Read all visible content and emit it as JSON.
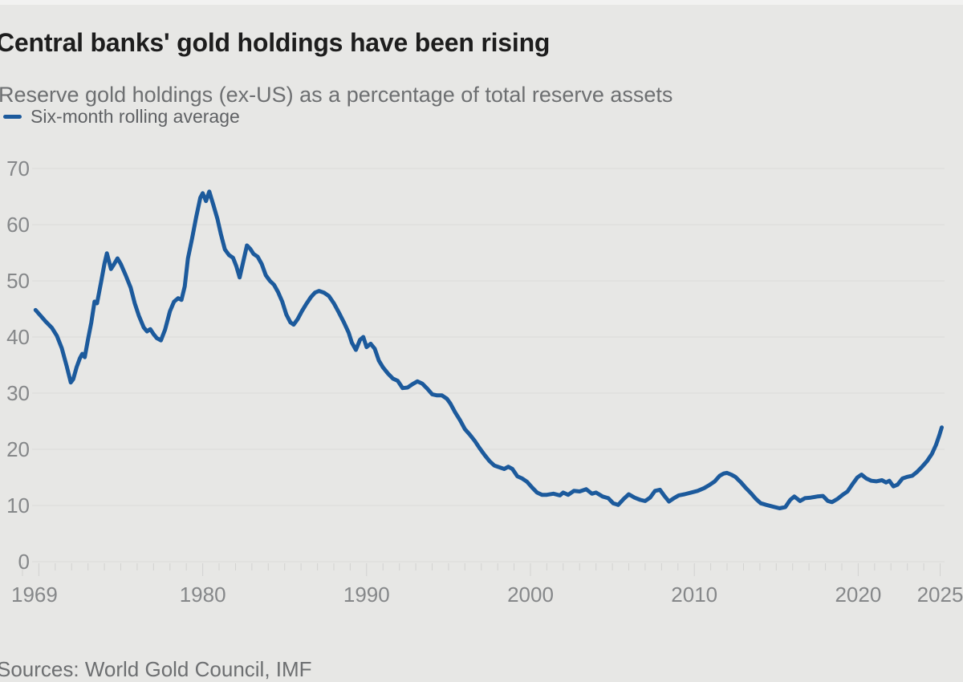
{
  "header": {
    "title": "Central banks' gold holdings have been rising",
    "subtitle": "Reserve gold holdings (ex-US) as a percentage of total reserve assets"
  },
  "legend": {
    "label": "Six-month rolling average"
  },
  "source": "Sources: World Gold Council, IMF",
  "colors": {
    "background": "#e7e7e5",
    "line": "#1c5a9c",
    "title_text": "#1d1d1d",
    "muted_text": "#6d6f71",
    "axis_text": "#858789",
    "gridline": "#dbdbd9"
  },
  "chart_data": {
    "type": "line",
    "title": "Central banks' gold holdings have been rising",
    "subtitle": "Reserve gold holdings (ex-US) as a percentage of total reserve assets",
    "xlabel": "",
    "ylabel": "Reserve gold holdings (ex-US) as % of total reserve assets",
    "xlim": [
      1969,
      2025
    ],
    "ylim": [
      0,
      70
    ],
    "yticks": [
      0,
      10,
      20,
      30,
      40,
      50,
      60,
      70
    ],
    "xticks": [
      1969,
      1980,
      1990,
      2000,
      2010,
      2020,
      2025
    ],
    "grid": true,
    "legend_position": "top-left",
    "series": [
      {
        "name": "Six-month rolling average",
        "color": "#1c5a9c",
        "points": [
          [
            1969.8,
            44.8
          ],
          [
            1970.1,
            43.8
          ],
          [
            1970.4,
            42.8
          ],
          [
            1970.8,
            41.6
          ],
          [
            1971.1,
            40.2
          ],
          [
            1971.4,
            38.0
          ],
          [
            1971.7,
            34.8
          ],
          [
            1971.95,
            31.9
          ],
          [
            1972.1,
            32.5
          ],
          [
            1972.3,
            34.6
          ],
          [
            1972.5,
            36.2
          ],
          [
            1972.65,
            37.0
          ],
          [
            1972.8,
            36.4
          ],
          [
            1973.0,
            39.6
          ],
          [
            1973.2,
            42.6
          ],
          [
            1973.4,
            46.3
          ],
          [
            1973.55,
            46.0
          ],
          [
            1973.8,
            49.8
          ],
          [
            1974.0,
            53.0
          ],
          [
            1974.15,
            54.9
          ],
          [
            1974.4,
            52.1
          ],
          [
            1974.6,
            53.0
          ],
          [
            1974.8,
            54.0
          ],
          [
            1975.0,
            53.0
          ],
          [
            1975.3,
            51.0
          ],
          [
            1975.6,
            48.8
          ],
          [
            1975.85,
            46.0
          ],
          [
            1976.1,
            43.8
          ],
          [
            1976.4,
            41.7
          ],
          [
            1976.6,
            41.0
          ],
          [
            1976.8,
            41.4
          ],
          [
            1977.0,
            40.5
          ],
          [
            1977.2,
            39.8
          ],
          [
            1977.45,
            39.4
          ],
          [
            1977.7,
            41.3
          ],
          [
            1978.0,
            44.6
          ],
          [
            1978.25,
            46.3
          ],
          [
            1978.5,
            46.9
          ],
          [
            1978.7,
            46.6
          ],
          [
            1978.9,
            49.0
          ],
          [
            1979.1,
            54.0
          ],
          [
            1979.35,
            57.5
          ],
          [
            1979.6,
            61.3
          ],
          [
            1979.85,
            64.8
          ],
          [
            1980.0,
            65.6
          ],
          [
            1980.2,
            64.2
          ],
          [
            1980.4,
            65.9
          ],
          [
            1980.65,
            63.5
          ],
          [
            1980.9,
            61.0
          ],
          [
            1981.1,
            58.4
          ],
          [
            1981.35,
            55.6
          ],
          [
            1981.6,
            54.6
          ],
          [
            1981.85,
            54.1
          ],
          [
            1982.05,
            52.6
          ],
          [
            1982.25,
            50.6
          ],
          [
            1982.5,
            53.8
          ],
          [
            1982.7,
            56.3
          ],
          [
            1982.9,
            55.7
          ],
          [
            1983.1,
            54.8
          ],
          [
            1983.35,
            54.3
          ],
          [
            1983.6,
            53.0
          ],
          [
            1983.85,
            51.0
          ],
          [
            1984.1,
            50.0
          ],
          [
            1984.35,
            49.3
          ],
          [
            1984.6,
            48.0
          ],
          [
            1984.85,
            46.3
          ],
          [
            1985.1,
            44.0
          ],
          [
            1985.35,
            42.6
          ],
          [
            1985.55,
            42.2
          ],
          [
            1985.8,
            43.2
          ],
          [
            1986.05,
            44.6
          ],
          [
            1986.3,
            45.8
          ],
          [
            1986.6,
            47.1
          ],
          [
            1986.85,
            47.9
          ],
          [
            1987.1,
            48.2
          ],
          [
            1987.4,
            47.9
          ],
          [
            1987.7,
            47.3
          ],
          [
            1988.0,
            46.0
          ],
          [
            1988.3,
            44.4
          ],
          [
            1988.6,
            42.7
          ],
          [
            1988.9,
            40.8
          ],
          [
            1989.1,
            39.0
          ],
          [
            1989.35,
            37.7
          ],
          [
            1989.6,
            39.5
          ],
          [
            1989.8,
            40.0
          ],
          [
            1990.0,
            38.2
          ],
          [
            1990.25,
            38.8
          ],
          [
            1990.5,
            37.9
          ],
          [
            1990.75,
            35.8
          ],
          [
            1991.0,
            34.6
          ],
          [
            1991.3,
            33.5
          ],
          [
            1991.6,
            32.6
          ],
          [
            1991.9,
            32.2
          ],
          [
            1992.2,
            30.9
          ],
          [
            1992.5,
            31.0
          ],
          [
            1992.8,
            31.6
          ],
          [
            1993.1,
            32.1
          ],
          [
            1993.4,
            31.7
          ],
          [
            1993.7,
            30.8
          ],
          [
            1994.0,
            29.8
          ],
          [
            1994.3,
            29.6
          ],
          [
            1994.6,
            29.6
          ],
          [
            1994.9,
            29.0
          ],
          [
            1995.1,
            28.2
          ],
          [
            1995.4,
            26.6
          ],
          [
            1995.7,
            25.2
          ],
          [
            1996.0,
            23.6
          ],
          [
            1996.3,
            22.6
          ],
          [
            1996.6,
            21.5
          ],
          [
            1996.9,
            20.2
          ],
          [
            1997.2,
            19.0
          ],
          [
            1997.5,
            17.9
          ],
          [
            1997.8,
            17.1
          ],
          [
            1998.1,
            16.8
          ],
          [
            1998.4,
            16.5
          ],
          [
            1998.65,
            16.9
          ],
          [
            1998.9,
            16.5
          ],
          [
            1999.2,
            15.2
          ],
          [
            1999.5,
            14.8
          ],
          [
            1999.8,
            14.2
          ],
          [
            2000.1,
            13.2
          ],
          [
            2000.4,
            12.3
          ],
          [
            2000.7,
            11.9
          ],
          [
            2001.0,
            11.9
          ],
          [
            2001.4,
            12.1
          ],
          [
            2001.8,
            11.8
          ],
          [
            2002.0,
            12.3
          ],
          [
            2002.3,
            11.9
          ],
          [
            2002.65,
            12.6
          ],
          [
            2003.0,
            12.5
          ],
          [
            2003.4,
            12.9
          ],
          [
            2003.75,
            12.1
          ],
          [
            2004.0,
            12.3
          ],
          [
            2004.4,
            11.6
          ],
          [
            2004.75,
            11.3
          ],
          [
            2005.05,
            10.4
          ],
          [
            2005.35,
            10.1
          ],
          [
            2005.7,
            11.2
          ],
          [
            2006.0,
            12.0
          ],
          [
            2006.35,
            11.4
          ],
          [
            2006.7,
            11.0
          ],
          [
            2007.0,
            10.8
          ],
          [
            2007.3,
            11.4
          ],
          [
            2007.6,
            12.6
          ],
          [
            2007.9,
            12.8
          ],
          [
            2008.15,
            11.8
          ],
          [
            2008.45,
            10.7
          ],
          [
            2008.75,
            11.3
          ],
          [
            2009.05,
            11.8
          ],
          [
            2009.4,
            12.0
          ],
          [
            2009.8,
            12.3
          ],
          [
            2010.2,
            12.6
          ],
          [
            2010.6,
            13.1
          ],
          [
            2010.95,
            13.7
          ],
          [
            2011.25,
            14.3
          ],
          [
            2011.55,
            15.3
          ],
          [
            2011.8,
            15.7
          ],
          [
            2012.0,
            15.8
          ],
          [
            2012.25,
            15.5
          ],
          [
            2012.5,
            15.1
          ],
          [
            2012.85,
            14.1
          ],
          [
            2013.15,
            13.1
          ],
          [
            2013.45,
            12.2
          ],
          [
            2013.75,
            11.2
          ],
          [
            2014.05,
            10.4
          ],
          [
            2014.4,
            10.1
          ],
          [
            2014.8,
            9.8
          ],
          [
            2015.2,
            9.5
          ],
          [
            2015.55,
            9.7
          ],
          [
            2015.85,
            11.0
          ],
          [
            2016.1,
            11.6
          ],
          [
            2016.45,
            10.8
          ],
          [
            2016.75,
            11.3
          ],
          [
            2017.1,
            11.4
          ],
          [
            2017.5,
            11.6
          ],
          [
            2017.85,
            11.7
          ],
          [
            2018.15,
            10.8
          ],
          [
            2018.4,
            10.6
          ],
          [
            2018.75,
            11.2
          ],
          [
            2019.05,
            11.9
          ],
          [
            2019.35,
            12.5
          ],
          [
            2019.65,
            13.8
          ],
          [
            2019.95,
            15.0
          ],
          [
            2020.2,
            15.5
          ],
          [
            2020.5,
            14.8
          ],
          [
            2020.8,
            14.4
          ],
          [
            2021.1,
            14.3
          ],
          [
            2021.45,
            14.5
          ],
          [
            2021.7,
            14.1
          ],
          [
            2021.9,
            14.4
          ],
          [
            2022.15,
            13.4
          ],
          [
            2022.4,
            13.7
          ],
          [
            2022.7,
            14.8
          ],
          [
            2023.0,
            15.1
          ],
          [
            2023.3,
            15.3
          ],
          [
            2023.6,
            16.0
          ],
          [
            2023.9,
            16.9
          ],
          [
            2024.2,
            17.9
          ],
          [
            2024.5,
            19.2
          ],
          [
            2024.75,
            20.8
          ],
          [
            2024.95,
            22.5
          ],
          [
            2025.1,
            23.9
          ]
        ]
      }
    ]
  }
}
